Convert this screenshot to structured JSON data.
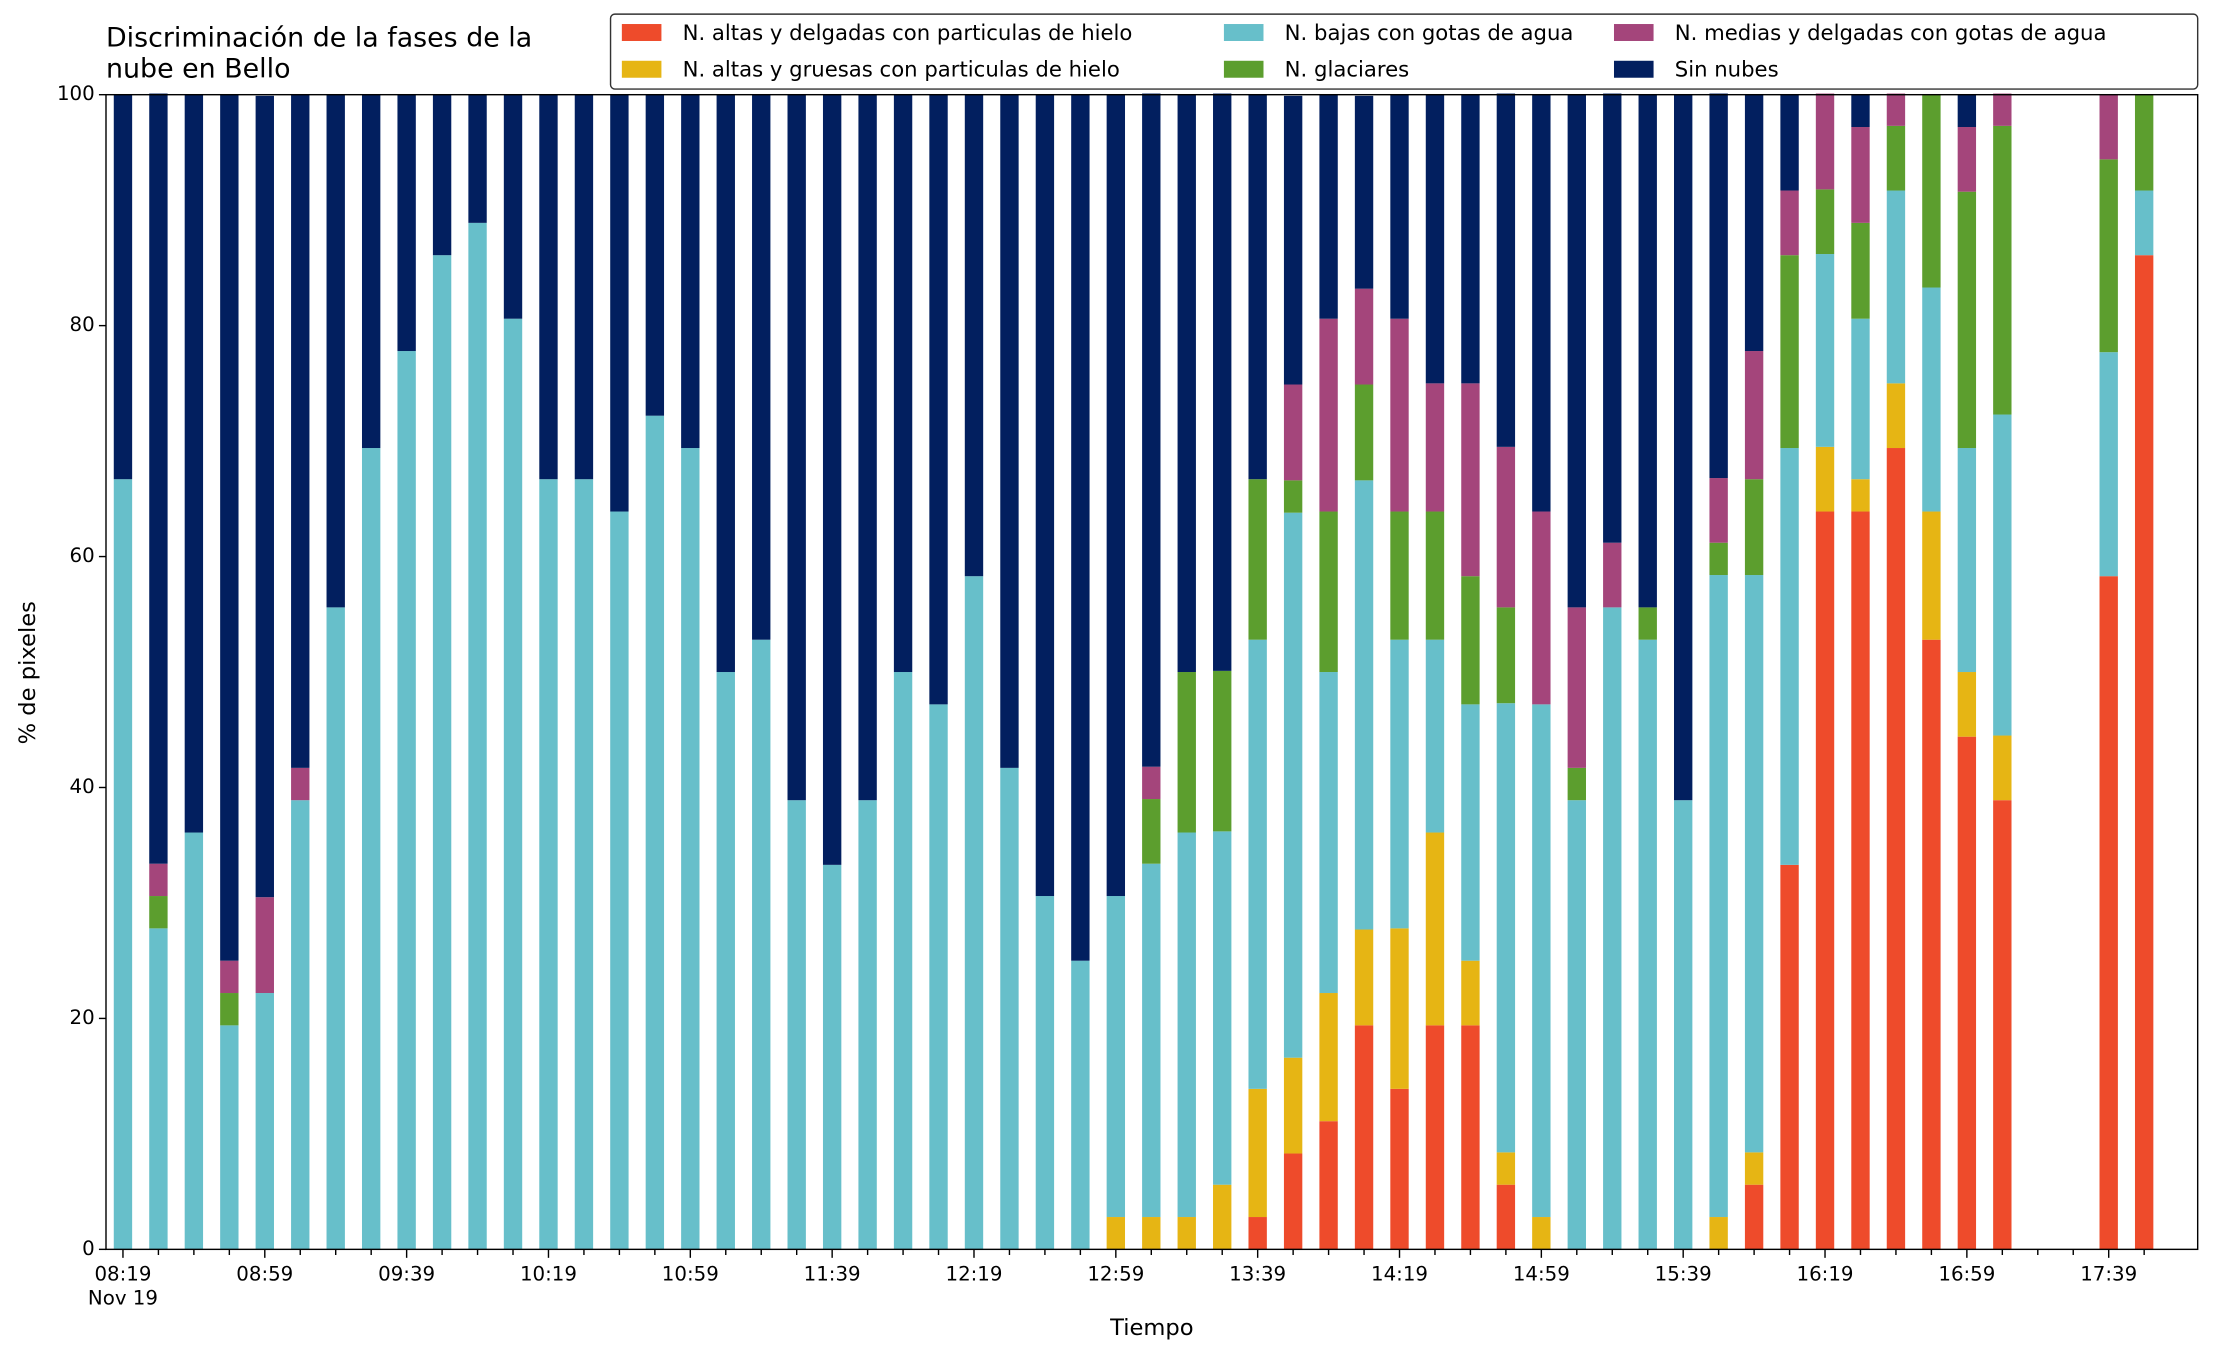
{
  "chart_data": {
    "type": "stacked_bar",
    "title": "Discriminación de la fases de la nube en Bello",
    "xlabel": "Tiempo",
    "ylabel": "% de pixeles",
    "date_label": "Nov 19",
    "categories": [
      "08:19",
      null,
      null,
      null,
      "08:59",
      null,
      null,
      null,
      "09:39",
      null,
      null,
      null,
      "10:19",
      null,
      null,
      null,
      "10:59",
      null,
      null,
      null,
      "11:39",
      null,
      null,
      null,
      "12:19",
      null,
      null,
      null,
      "12:59",
      null,
      null,
      null,
      "13:39",
      null,
      null,
      null,
      "14:19",
      null,
      null,
      null,
      "14:59",
      null,
      null,
      null,
      "15:39",
      null,
      null,
      null,
      "16:19",
      null,
      null,
      null,
      "16:59",
      null,
      null,
      null,
      "17:39",
      null
    ],
    "ylim": [
      0,
      100
    ],
    "yticks": [
      0,
      20,
      40,
      60,
      80,
      100
    ],
    "legend": "upper right",
    "series": [
      {
        "name": "N. altas y delgadas con particulas de hielo",
        "color": "#ee4b2b",
        "values": [
          0,
          0,
          0,
          0,
          0,
          0,
          0,
          0,
          0,
          0,
          0,
          0,
          0,
          0,
          0,
          0,
          0,
          0,
          0,
          0,
          0,
          0,
          0,
          0,
          0,
          0,
          0,
          0,
          0,
          0,
          0,
          0,
          2.8,
          8.3,
          11.1,
          19.4,
          13.9,
          19.4,
          19.4,
          5.6,
          0,
          0,
          0,
          0,
          0,
          0,
          5.6,
          33.3,
          63.9,
          63.9,
          69.4,
          52.8,
          44.4,
          38.9,
          0,
          0,
          58.3,
          86.1
        ]
      },
      {
        "name": "N. altas y gruesas con particulas de hielo",
        "color": "#e6b514",
        "values": [
          0,
          0,
          0,
          0,
          0,
          0,
          0,
          0,
          0,
          0,
          0,
          0,
          0,
          0,
          0,
          0,
          0,
          0,
          0,
          0,
          0,
          0,
          0,
          0,
          0,
          0,
          0,
          0,
          2.8,
          2.8,
          2.8,
          5.6,
          11.1,
          8.3,
          11.1,
          8.3,
          13.9,
          16.7,
          5.6,
          2.8,
          2.8,
          0,
          0,
          0,
          0,
          2.8,
          2.8,
          0,
          5.6,
          2.8,
          5.6,
          11.1,
          5.6,
          5.6,
          0,
          0,
          0,
          0
        ]
      },
      {
        "name": "N. bajas con gotas de agua",
        "color": "#67bfca",
        "values": [
          66.7,
          27.8,
          36.1,
          19.4,
          22.2,
          38.9,
          55.6,
          69.4,
          77.8,
          86.1,
          88.9,
          80.6,
          66.7,
          66.7,
          63.9,
          72.2,
          69.4,
          50,
          52.8,
          38.9,
          33.3,
          38.9,
          50,
          47.2,
          58.3,
          41.7,
          30.6,
          25,
          27.8,
          30.6,
          33.3,
          30.6,
          38.9,
          47.2,
          27.8,
          38.9,
          25,
          16.7,
          22.2,
          38.9,
          44.4,
          38.9,
          55.6,
          52.8,
          38.9,
          55.6,
          50,
          36.1,
          16.7,
          13.9,
          16.7,
          19.4,
          19.4,
          27.8,
          0,
          0,
          19.4,
          5.6
        ]
      },
      {
        "name": "N. glaciares",
        "color": "#5c9e2e",
        "values": [
          0,
          2.8,
          0,
          2.8,
          0,
          0,
          0,
          0,
          0,
          0,
          0,
          0,
          0,
          0,
          0,
          0,
          0,
          0,
          0,
          0,
          0,
          0,
          0,
          0,
          0,
          0,
          0,
          0,
          0,
          5.6,
          13.9,
          13.9,
          13.9,
          2.8,
          13.9,
          8.3,
          11.1,
          11.1,
          11.1,
          8.3,
          0,
          2.8,
          0,
          2.8,
          0,
          2.8,
          8.3,
          16.7,
          5.6,
          8.3,
          5.6,
          16.7,
          22.2,
          25,
          0,
          0,
          16.7,
          8.3
        ]
      },
      {
        "name": "N. medias y delgadas con gotas de agua",
        "color": "#a4457b",
        "values": [
          0,
          2.8,
          0,
          2.8,
          8.3,
          2.8,
          0,
          0,
          0,
          0,
          0,
          0,
          0,
          0,
          0,
          0,
          0,
          0,
          0,
          0,
          0,
          0,
          0,
          0,
          0,
          0,
          0,
          0,
          0,
          2.8,
          0,
          0,
          0,
          8.3,
          16.7,
          8.3,
          16.7,
          11.1,
          16.7,
          13.9,
          16.7,
          13.9,
          5.6,
          0,
          0,
          5.6,
          11.1,
          5.6,
          8.3,
          8.3,
          2.8,
          0,
          5.6,
          2.8,
          0,
          0,
          5.6,
          0
        ]
      },
      {
        "name": "Sin nubes",
        "color": "#021f5f",
        "values": [
          33.3,
          66.7,
          63.9,
          75,
          69.4,
          58.3,
          44.4,
          30.6,
          22.2,
          13.9,
          11.1,
          19.4,
          33.3,
          33.3,
          36.1,
          27.8,
          30.6,
          50,
          47.2,
          61.1,
          66.7,
          61.1,
          50,
          52.8,
          41.7,
          58.3,
          69.4,
          75,
          69.4,
          58.3,
          50,
          50,
          33.3,
          25,
          19.4,
          16.7,
          19.4,
          25,
          25,
          30.6,
          36.1,
          44.4,
          38.9,
          44.4,
          61.1,
          33.3,
          22.2,
          8.3,
          0,
          2.8,
          0,
          0,
          2.8,
          0,
          0,
          0,
          0,
          0
        ]
      }
    ]
  }
}
